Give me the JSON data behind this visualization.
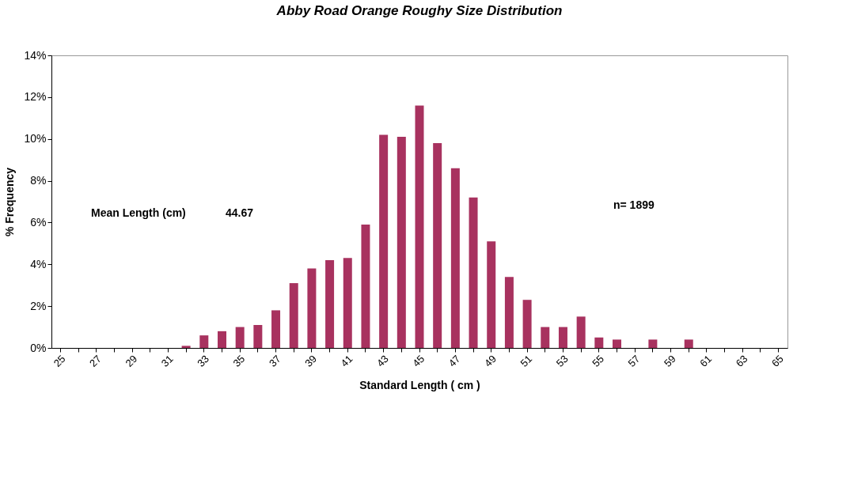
{
  "chart_data": {
    "type": "bar",
    "title": "Abby Road Orange Roughy Size Distribution",
    "xlabel": "Standard Length ( cm )",
    "ylabel": "% Frequency",
    "categories": [
      "25",
      null,
      "27",
      null,
      "29",
      null,
      "31",
      null,
      "33",
      null,
      "35",
      null,
      "37",
      null,
      "39",
      null,
      "41",
      null,
      "43",
      null,
      "45",
      null,
      "47",
      null,
      "49",
      null,
      "51",
      null,
      "53",
      null,
      "55",
      null,
      "57",
      null,
      "59",
      null,
      "61",
      null,
      "63",
      null,
      "65"
    ],
    "values": [
      0,
      0,
      0,
      0,
      0,
      0,
      0,
      0.1,
      0.6,
      0.8,
      1.0,
      1.1,
      1.8,
      3.1,
      3.8,
      4.2,
      4.3,
      5.9,
      10.2,
      10.1,
      11.6,
      9.8,
      8.6,
      7.2,
      5.1,
      3.4,
      2.3,
      1.0,
      1.0,
      1.5,
      0.5,
      0.4,
      0,
      0.4,
      0,
      0.4,
      0,
      0,
      0,
      0,
      0
    ],
    "color": "#a8325f",
    "ylim": [
      0,
      14
    ],
    "yticks": [
      {
        "value": 0,
        "label": "0%"
      },
      {
        "value": 2,
        "label": "2%"
      },
      {
        "value": 4,
        "label": "4%"
      },
      {
        "value": 6,
        "label": "6%"
      },
      {
        "value": 8,
        "label": "8%"
      },
      {
        "value": 10,
        "label": "10%"
      },
      {
        "value": 12,
        "label": "12%"
      },
      {
        "value": 14,
        "label": "14%"
      }
    ],
    "grid": false,
    "annotations": [
      "Mean Length (cm)",
      "44.67",
      "n= 1899"
    ]
  }
}
